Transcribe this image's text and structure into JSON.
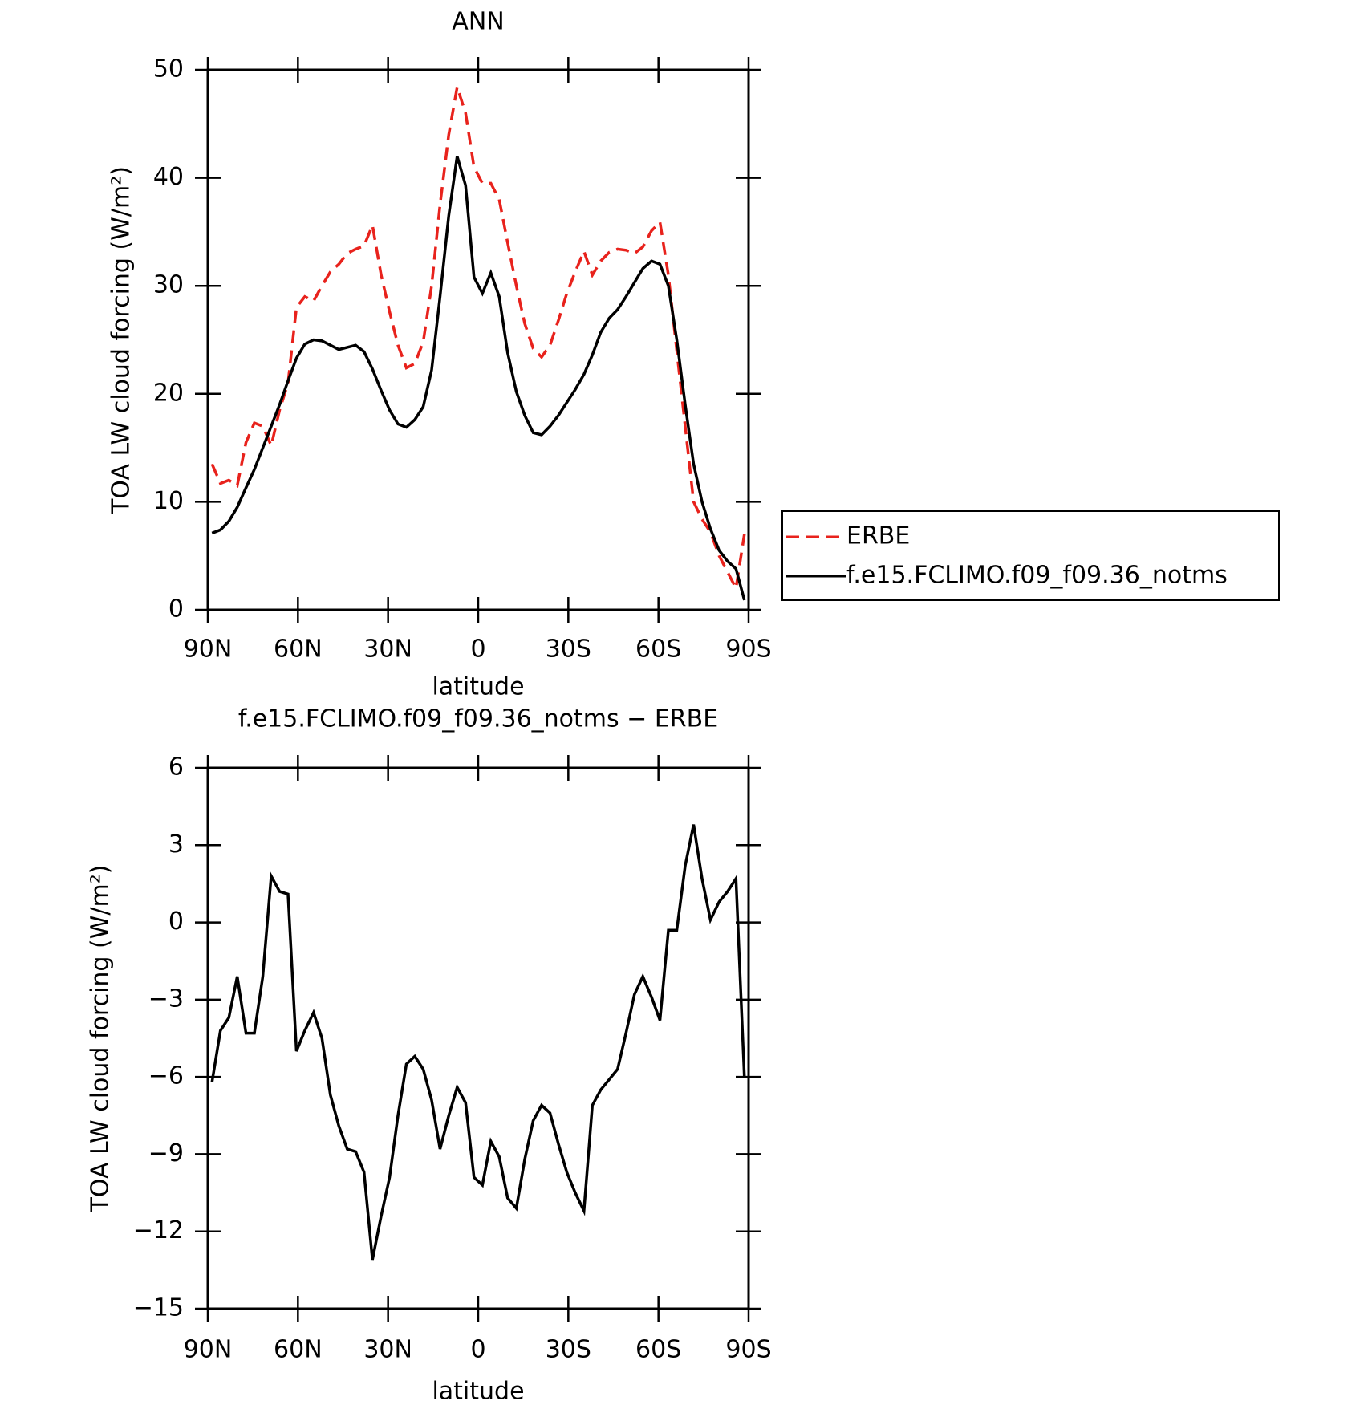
{
  "chart_data": [
    {
      "type": "line",
      "title": "ANN",
      "x_label": "latitude",
      "y_label": "TOA LW cloud forcing (W/m²)",
      "x": [
        88.6,
        85.8,
        83.0,
        80.2,
        77.3,
        74.5,
        71.7,
        68.9,
        66.1,
        63.3,
        60.5,
        57.7,
        54.8,
        52.0,
        49.2,
        46.4,
        43.6,
        40.8,
        38.0,
        35.2,
        32.3,
        29.5,
        26.7,
        23.9,
        21.1,
        18.3,
        15.5,
        12.7,
        9.8,
        7.0,
        4.2,
        1.4,
        -1.4,
        -4.2,
        -7.0,
        -9.8,
        -12.7,
        -15.5,
        -18.3,
        -21.1,
        -23.9,
        -26.7,
        -29.5,
        -32.3,
        -35.2,
        -38.0,
        -40.8,
        -43.6,
        -46.4,
        -49.2,
        -52.0,
        -54.8,
        -57.7,
        -60.5,
        -63.3,
        -66.1,
        -68.9,
        -71.7,
        -74.5,
        -77.3,
        -80.2,
        -83.0,
        -85.8,
        -88.6
      ],
      "series": [
        {
          "name": "ERBE",
          "color": "#e8221c",
          "style": "dashed",
          "values": [
            13.5,
            11.7,
            12.0,
            11.5,
            15.5,
            17.3,
            17.0,
            15.2,
            18.5,
            21.0,
            28.0,
            29.0,
            28.6,
            30.0,
            31.3,
            32.0,
            33.0,
            33.4,
            33.7,
            35.6,
            31.0,
            27.6,
            24.5,
            22.4,
            22.8,
            24.8,
            30.0,
            37.5,
            44.0,
            48.4,
            46.0,
            41.0,
            39.5,
            39.5,
            38.0,
            34.0,
            30.0,
            26.5,
            24.2,
            23.4,
            24.5,
            26.8,
            29.3,
            31.3,
            33.2,
            31.0,
            32.3,
            33.1,
            33.4,
            33.3,
            33.0,
            33.6,
            35.1,
            35.9,
            31.0,
            24.0,
            17.0,
            10.0,
            8.4,
            7.2,
            5.0,
            3.5,
            2.0,
            7.0
          ]
        },
        {
          "name": "f.e15.FCLIMO.f09_f09.36_notms",
          "color": "#000000",
          "style": "solid",
          "values": [
            7.1,
            7.4,
            8.2,
            9.5,
            11.3,
            13.0,
            15.0,
            17.0,
            19.0,
            21.2,
            23.3,
            24.6,
            25.0,
            24.9,
            24.5,
            24.1,
            24.3,
            24.5,
            23.9,
            22.3,
            20.3,
            18.5,
            17.2,
            16.9,
            17.6,
            18.8,
            22.2,
            29.0,
            36.5,
            42.0,
            39.3,
            30.8,
            29.3,
            31.2,
            29.0,
            23.8,
            20.2,
            18.0,
            16.4,
            16.2,
            17.0,
            18.0,
            19.2,
            20.4,
            21.8,
            23.6,
            25.7,
            27.0,
            27.8,
            29.0,
            30.3,
            31.6,
            32.3,
            32.0,
            30.0,
            25.0,
            19.0,
            13.5,
            10.0,
            7.5,
            5.5,
            4.5,
            3.8,
            0.9
          ]
        }
      ],
      "xlim": [
        90,
        -90
      ],
      "xticks": [
        {
          "value": 90,
          "label": "90N"
        },
        {
          "value": 60,
          "label": "60N"
        },
        {
          "value": 30,
          "label": "30N"
        },
        0,
        {
          "value": -30,
          "label": "30S"
        },
        {
          "value": -60,
          "label": "60S"
        },
        {
          "value": -90,
          "label": "90S"
        }
      ],
      "ylim": [
        0,
        50
      ],
      "yticks": [
        0,
        10,
        20,
        30,
        40,
        50
      ],
      "legend": "right"
    },
    {
      "type": "line",
      "title": "f.e15.FCLIMO.f09_f09.36_notms − ERBE",
      "x_label": "latitude",
      "y_label": "TOA LW cloud forcing (W/m²)",
      "x": [
        88.6,
        85.8,
        83.0,
        80.2,
        77.3,
        74.5,
        71.7,
        68.9,
        66.1,
        63.3,
        60.5,
        57.7,
        54.8,
        52.0,
        49.2,
        46.4,
        43.6,
        40.8,
        38.0,
        35.2,
        32.3,
        29.5,
        26.7,
        23.9,
        21.1,
        18.3,
        15.5,
        12.7,
        9.8,
        7.0,
        4.2,
        1.4,
        -1.4,
        -4.2,
        -7.0,
        -9.8,
        -12.7,
        -15.5,
        -18.3,
        -21.1,
        -23.9,
        -26.7,
        -29.5,
        -32.3,
        -35.2,
        -38.0,
        -40.8,
        -43.6,
        -46.4,
        -49.2,
        -52.0,
        -54.8,
        -57.7,
        -60.5,
        -63.3,
        -66.1,
        -68.9,
        -71.7,
        -74.5,
        -77.3,
        -80.2,
        -83.0,
        -85.8,
        -88.6
      ],
      "series": [
        {
          "color": "#000000",
          "style": "solid",
          "values": [
            -6.2,
            -4.2,
            -3.7,
            -2.1,
            -4.3,
            -4.3,
            -2.1,
            1.8,
            1.2,
            1.1,
            -5.0,
            -4.2,
            -3.5,
            -4.5,
            -6.7,
            -7.9,
            -8.8,
            -8.9,
            -9.7,
            -13.1,
            -11.4,
            -9.9,
            -7.5,
            -5.5,
            -5.2,
            -5.7,
            -6.9,
            -8.8,
            -7.5,
            -6.4,
            -7.0,
            -9.9,
            -10.2,
            -8.5,
            -9.1,
            -10.7,
            -11.1,
            -9.2,
            -7.7,
            -7.1,
            -7.4,
            -8.6,
            -9.7,
            -10.5,
            -11.2,
            -7.1,
            -6.5,
            -6.1,
            -5.7,
            -4.3,
            -2.8,
            -2.1,
            -2.9,
            -3.8,
            -0.3,
            -0.3,
            2.2,
            3.8,
            1.7,
            0.1,
            0.8,
            1.2,
            1.7,
            -6.0
          ]
        }
      ],
      "xlim": [
        90,
        -90
      ],
      "xticks": [
        {
          "value": 90,
          "label": "90N"
        },
        {
          "value": 60,
          "label": "60N"
        },
        {
          "value": 30,
          "label": "30N"
        },
        0,
        {
          "value": -30,
          "label": "30S"
        },
        {
          "value": -60,
          "label": "60S"
        },
        {
          "value": -90,
          "label": "90S"
        }
      ],
      "ylim": [
        -15,
        6
      ],
      "yticks": [
        {
          "value": -15,
          "label": "−15"
        },
        {
          "value": -12,
          "label": "−12"
        },
        {
          "value": -9,
          "label": "−9"
        },
        {
          "value": -6,
          "label": "−6"
        },
        {
          "value": -3,
          "label": "−3"
        },
        0,
        3,
        6
      ]
    }
  ]
}
